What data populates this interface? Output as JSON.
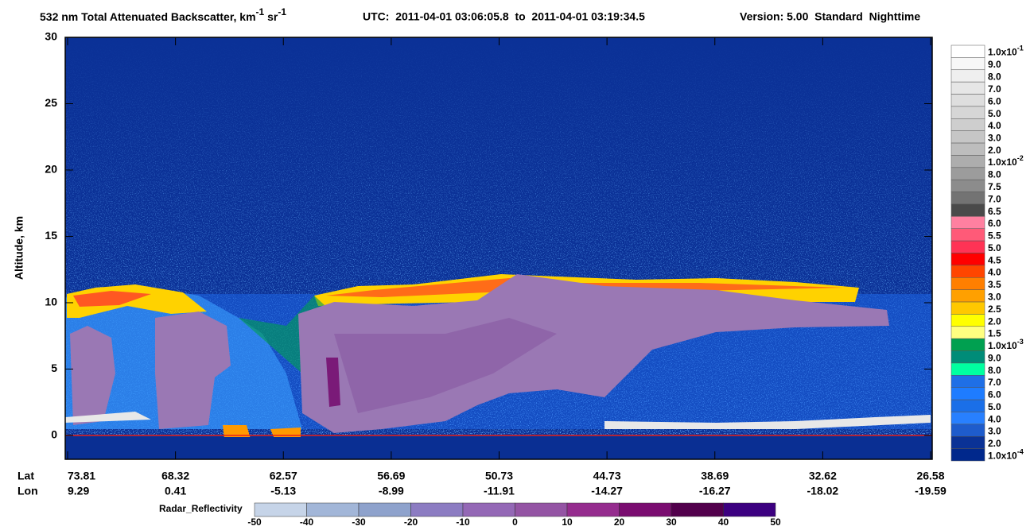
{
  "chart_data": {
    "type": "curtain",
    "title": {
      "main": "532 nm Total Attenuated Backscatter, km",
      "sup1": "-1",
      "mid": " sr",
      "sup2": "-1"
    },
    "time_range": "UTC:  2011-04-01 03:06:05.8  to  2011-04-01 03:19:34.5",
    "version": "Version: 5.00  Standard  Nighttime",
    "ylabel": "Altitude, km",
    "ylim": [
      -1.8,
      30
    ],
    "yticks": [
      0,
      5,
      10,
      15,
      20,
      25,
      30
    ],
    "x_rows": [
      {
        "name": "Lat",
        "values": [
          73.81,
          68.32,
          62.57,
          56.69,
          50.73,
          44.73,
          38.69,
          32.62,
          26.58
        ]
      },
      {
        "name": "Lon",
        "values": [
          9.29,
          0.41,
          -5.13,
          -8.99,
          -11.91,
          -14.27,
          -16.27,
          -18.02,
          -19.59
        ]
      }
    ],
    "colorbar": {
      "labels": [
        {
          "label": "1.0x10",
          "sup": "-1"
        },
        "9.0",
        "8.0",
        "7.0",
        "6.0",
        "5.0",
        "4.0",
        "3.0",
        "2.0",
        {
          "label": "1.0x10",
          "sup": "-2"
        },
        "8.0",
        "7.5",
        "7.0",
        "6.5",
        "6.0",
        "5.5",
        "5.0",
        "4.5",
        "4.0",
        "3.5",
        "3.0",
        "2.5",
        "2.0",
        "1.5",
        {
          "label": "1.0x10",
          "sup": "-3"
        },
        "9.0",
        "8.0",
        "7.0",
        "6.0",
        "5.0",
        "4.0",
        "3.0",
        "2.0",
        {
          "label": "1.0x10",
          "sup": "-4"
        }
      ],
      "colors": [
        "#ffffff",
        "#f7f7f7",
        "#efefef",
        "#e6e6e6",
        "#dedede",
        "#d6d6d6",
        "#cecece",
        "#c6c6c6",
        "#bdbdbd",
        "#adadad",
        "#9c9c9c",
        "#8c8c8c",
        "#737373",
        "#4a4a4a",
        "#ff80a0",
        "#ff5a78",
        "#ff3355",
        "#ff0000",
        "#ff4500",
        "#ff7f00",
        "#ffa000",
        "#ffc800",
        "#ffff00",
        "#ffff80",
        "#00a050",
        "#008c78",
        "#00ffa0",
        "#1f6fe6",
        "#1e7cff",
        "#1a6fe8",
        "#2880ff",
        "#1e5ccc",
        "#0a3296",
        "#00288c"
      ]
    },
    "radar_colorbar": {
      "label": "Radar_Reflectivity",
      "ticks": [
        -50,
        -40,
        -30,
        -20,
        -10,
        0,
        10,
        20,
        30,
        40,
        50
      ],
      "colors": [
        "#c6d4e8",
        "#a2b6d8",
        "#8ea2cc",
        "#8c7cc2",
        "#9468b6",
        "#9454a4",
        "#952c8e",
        "#7a0c70",
        "#52004c",
        "#3c0080"
      ]
    }
  }
}
